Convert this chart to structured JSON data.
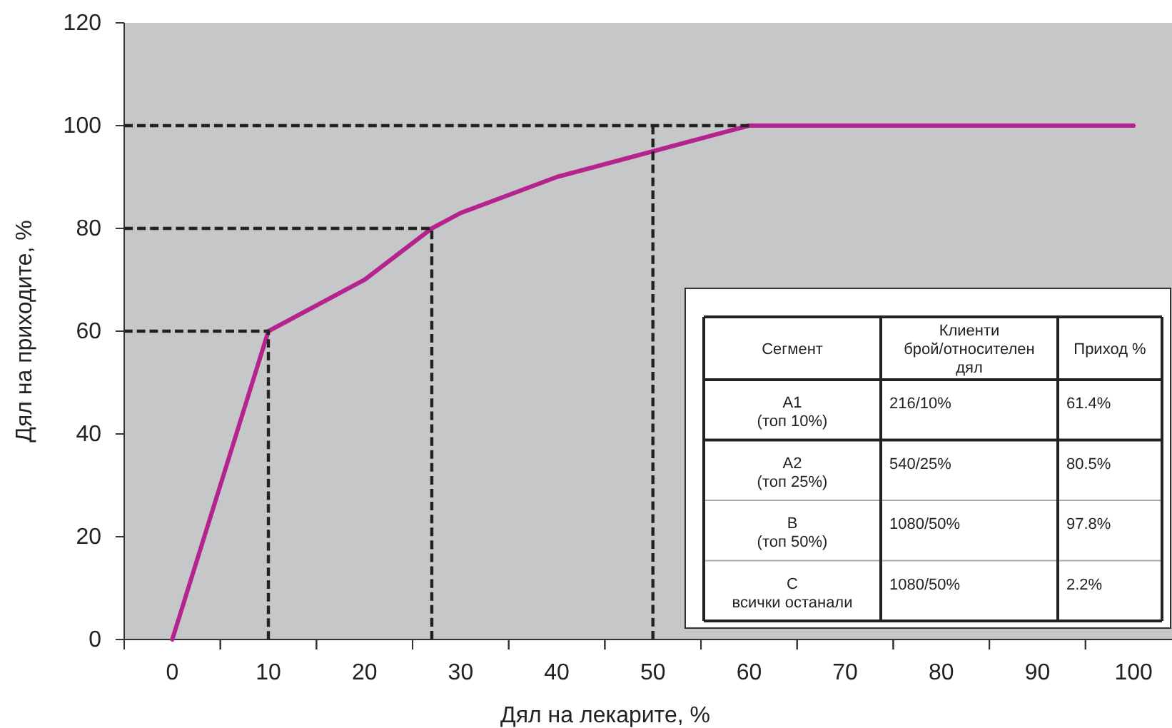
{
  "chart_data": [
    {
      "type": "line",
      "xlabel": "Дял на лекарите, %",
      "ylabel": "Дял на приходите, %",
      "xlim": [
        -5,
        104
      ],
      "ylim": [
        0,
        120
      ],
      "xticks": [
        0,
        10,
        20,
        30,
        40,
        50,
        60,
        70,
        80,
        90,
        100
      ],
      "yticks": [
        0,
        20,
        40,
        60,
        80,
        100,
        120
      ],
      "grid": false,
      "series": [
        {
          "color": "#b5248e",
          "line_style": "solid",
          "x": [
            0,
            10,
            20,
            27,
            30,
            40,
            50,
            60,
            100
          ],
          "values": [
            0,
            60,
            70,
            80,
            83,
            90,
            95,
            100,
            100
          ]
        },
        {
          "color": "#222222",
          "line_style": "dashed",
          "x": [
            10,
            10,
            -5
          ],
          "values": [
            0,
            60,
            60
          ]
        },
        {
          "color": "#222222",
          "line_style": "dashed",
          "x": [
            27,
            27,
            -5
          ],
          "values": [
            0,
            80,
            80
          ]
        },
        {
          "color": "#222222",
          "line_style": "dashed",
          "x": [
            50,
            50
          ],
          "values": [
            0,
            100
          ]
        },
        {
          "color": "#222222",
          "line_style": "dashed",
          "x": [
            -5,
            60
          ],
          "values": [
            100,
            100
          ]
        }
      ]
    },
    {
      "type": "other",
      "categories": [
        "Сегмент",
        "Клиенти\nброй/относителен\nдял",
        "Приход %"
      ],
      "cell_labels": [
        [
          "A1\n(топ 10%)",
          "216/10%",
          "61.4%"
        ],
        [
          "A2\n(топ 25%)",
          "540/25%",
          "80.5%"
        ],
        [
          "B\n(топ 50%)",
          "1080/50%",
          "97.8%"
        ],
        [
          "C\nвсички останали",
          "1080/50%",
          "2.2%"
        ]
      ]
    }
  ]
}
